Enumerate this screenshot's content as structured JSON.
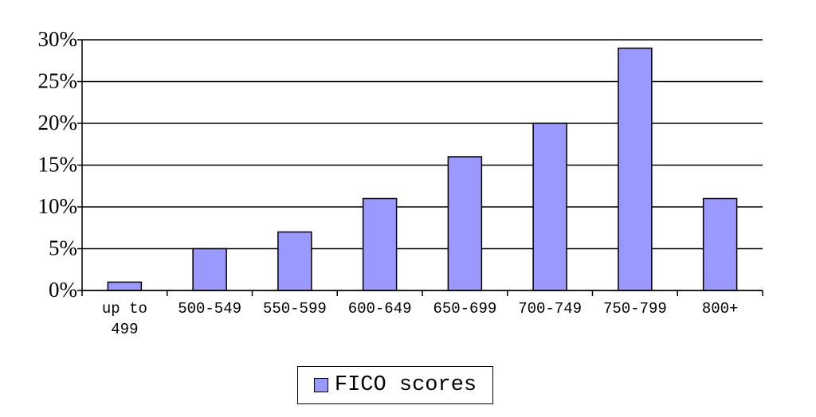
{
  "chart_data": {
    "type": "bar",
    "categories": [
      "up to 499",
      "500-549",
      "550-599",
      "600-649",
      "650-699",
      "700-749",
      "750-799",
      "800+"
    ],
    "series": [
      {
        "name": "FICO scores",
        "color": "#9999ff",
        "values": [
          1,
          5,
          7,
          11,
          16,
          20,
          29,
          11
        ]
      }
    ],
    "ylim": [
      0,
      30
    ],
    "yticks": [
      {
        "value": 0,
        "label": "0%"
      },
      {
        "value": 5,
        "label": "5%"
      },
      {
        "value": 10,
        "label": "10%"
      },
      {
        "value": 15,
        "label": "15%"
      },
      {
        "value": 20,
        "label": "20%"
      },
      {
        "value": 25,
        "label": "25%"
      },
      {
        "value": 30,
        "label": "30%"
      }
    ],
    "grid": true,
    "legend": "bottom"
  }
}
